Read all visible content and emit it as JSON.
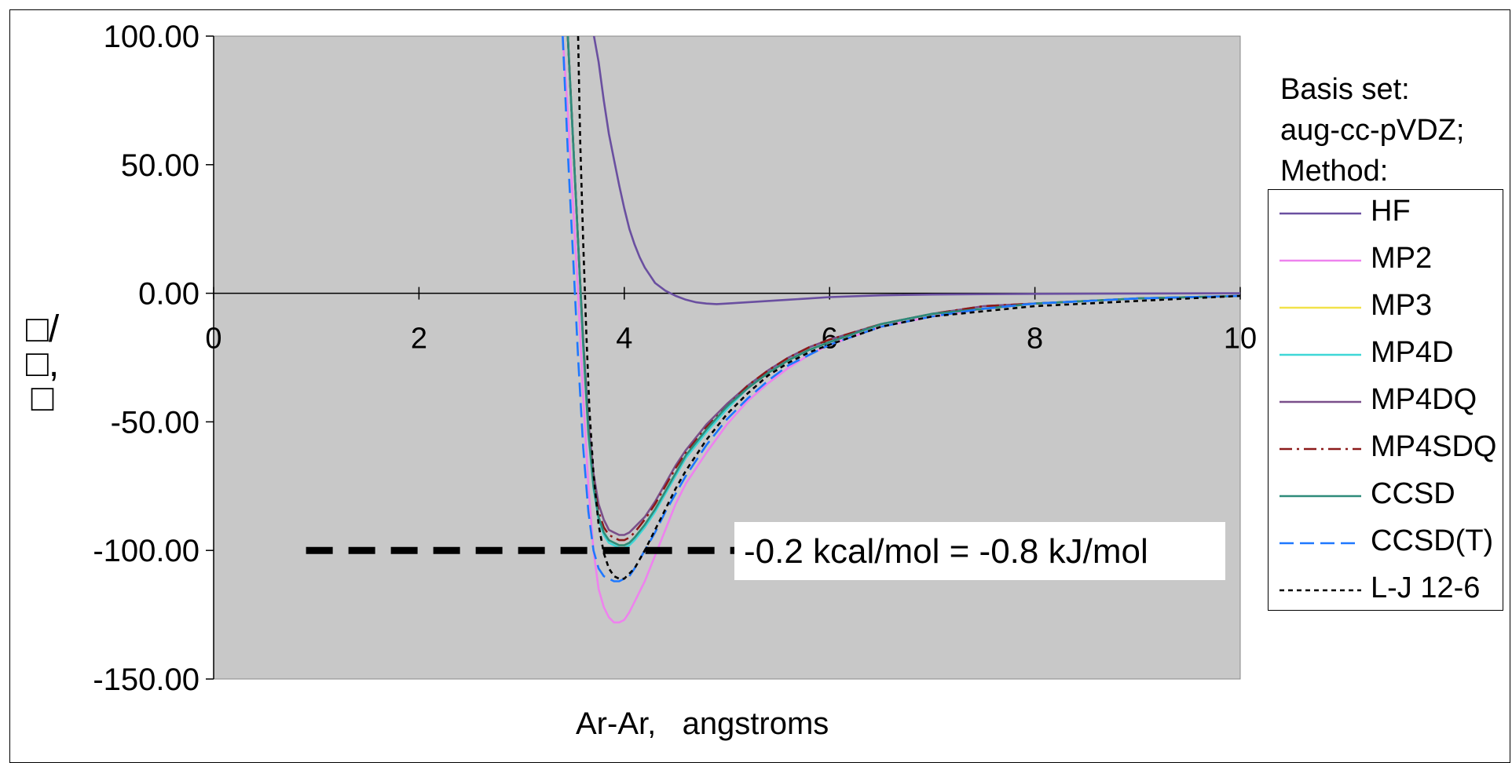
{
  "chart_data": {
    "type": "line",
    "xlabel": "Ar-Ar,   angstroms",
    "ylabel_line1": "□/□,",
    "ylabel_line2": "□",
    "xlim": [
      0,
      10
    ],
    "ylim": [
      -150,
      100
    ],
    "xticks": [
      "0",
      "2",
      "4",
      "6",
      "8",
      "10"
    ],
    "yticks": [
      "100.00",
      "50.00",
      "0.00",
      "-50.00",
      "-100.00",
      "-150.00"
    ],
    "plot_background": "#c8c8c8",
    "grid": false,
    "legend_header": [
      "Basis set:",
      "aug-cc-pVDZ;",
      "Method:"
    ],
    "legend_position": "right",
    "annotation": {
      "text": "-0.2 kcal/mol = -0.8 kJ/mol",
      "y": -100,
      "x_start": 0.9,
      "x_end": 5.1
    },
    "series": [
      {
        "name": "HF",
        "color": "#6a4fa0",
        "dash": "solid",
        "x": [
          3.7,
          3.75,
          3.8,
          3.85,
          3.9,
          3.95,
          4.0,
          4.05,
          4.1,
          4.15,
          4.2,
          4.25,
          4.3,
          4.4,
          4.5,
          4.6,
          4.7,
          4.8,
          4.9,
          5.0,
          5.2,
          5.4,
          5.6,
          5.8,
          6.0,
          6.5,
          7.0,
          8.0,
          9.0,
          10.0
        ],
        "y": [
          101,
          90,
          75,
          62,
          52,
          42,
          33,
          25,
          19,
          14,
          10,
          7,
          4,
          1,
          -1,
          -2.5,
          -3.5,
          -4,
          -4.2,
          -4,
          -3.5,
          -3,
          -2.5,
          -2,
          -1.5,
          -0.8,
          -0.5,
          -0.2,
          -0.1,
          0
        ]
      },
      {
        "name": "MP2",
        "color": "#ee82ee",
        "dash": "solid",
        "x": [
          3.4,
          3.45,
          3.5,
          3.55,
          3.6,
          3.65,
          3.7,
          3.75,
          3.8,
          3.85,
          3.9,
          3.95,
          4.0,
          4.05,
          4.1,
          4.2,
          4.3,
          4.4,
          4.5,
          4.6,
          4.8,
          5.0,
          5.2,
          5.4,
          5.6,
          5.8,
          6.0,
          6.5,
          7.0,
          7.5,
          8.0,
          9.0,
          10.0
        ],
        "y": [
          100,
          70,
          35,
          0,
          -40,
          -75,
          -100,
          -115,
          -122,
          -126,
          -128,
          -128,
          -127,
          -124,
          -120,
          -112,
          -102,
          -92,
          -82,
          -74,
          -62,
          -51,
          -42,
          -35,
          -29,
          -24,
          -20,
          -13,
          -9,
          -6,
          -4,
          -2,
          -1
        ]
      },
      {
        "name": "MP3",
        "color": "#f2e24a",
        "dash": "solid",
        "x": [
          3.45,
          3.5,
          3.55,
          3.6,
          3.65,
          3.7,
          3.75,
          3.8,
          3.85,
          3.9,
          3.95,
          4.0,
          4.05,
          4.1,
          4.2,
          4.3,
          4.4,
          4.5,
          4.6,
          4.8,
          5.0,
          5.2,
          5.4,
          5.6,
          5.8,
          6.0,
          6.5,
          7.0,
          7.5,
          8.0,
          9.0,
          10.0
        ],
        "y": [
          100,
          60,
          20,
          -20,
          -55,
          -75,
          -87,
          -93,
          -96,
          -97,
          -98,
          -98,
          -97,
          -95,
          -90,
          -84,
          -77,
          -70,
          -63,
          -53,
          -44,
          -37,
          -31,
          -26,
          -22,
          -19,
          -12,
          -8,
          -6,
          -4,
          -2,
          -1
        ]
      },
      {
        "name": "MP4D",
        "color": "#3fd7d7",
        "dash": "solid",
        "x": [
          3.45,
          3.5,
          3.55,
          3.6,
          3.65,
          3.7,
          3.75,
          3.8,
          3.85,
          3.9,
          3.95,
          4.0,
          4.05,
          4.1,
          4.2,
          4.3,
          4.4,
          4.5,
          4.6,
          4.8,
          5.0,
          5.2,
          5.4,
          5.6,
          5.8,
          6.0,
          6.5,
          7.0,
          7.5,
          8.0,
          9.0,
          10.0
        ],
        "y": [
          100,
          60,
          20,
          -20,
          -55,
          -76,
          -88,
          -94,
          -97,
          -98,
          -99,
          -99,
          -98,
          -96,
          -91,
          -85,
          -78,
          -71,
          -64,
          -54,
          -45,
          -37,
          -31,
          -26,
          -22,
          -19,
          -12,
          -8,
          -6,
          -4,
          -2,
          -1
        ]
      },
      {
        "name": "MP4DQ",
        "color": "#7a4f8a",
        "dash": "solid",
        "x": [
          3.45,
          3.5,
          3.55,
          3.6,
          3.65,
          3.7,
          3.75,
          3.8,
          3.85,
          3.9,
          3.95,
          4.0,
          4.05,
          4.1,
          4.2,
          4.3,
          4.4,
          4.5,
          4.6,
          4.8,
          5.0,
          5.2,
          5.4,
          5.6,
          5.8,
          6.0,
          6.5,
          7.0,
          7.5,
          8.0,
          9.0,
          10.0
        ],
        "y": [
          100,
          60,
          20,
          -18,
          -50,
          -70,
          -82,
          -88,
          -92,
          -93,
          -94,
          -94,
          -93,
          -91,
          -87,
          -81,
          -74,
          -67,
          -61,
          -51,
          -43,
          -36,
          -30,
          -25,
          -21,
          -18,
          -12,
          -8,
          -5,
          -4,
          -2,
          -1
        ]
      },
      {
        "name": "MP4SDQ",
        "color": "#8b1a1a",
        "dash": "dashdot",
        "x": [
          3.45,
          3.5,
          3.55,
          3.6,
          3.65,
          3.7,
          3.75,
          3.8,
          3.85,
          3.9,
          3.95,
          4.0,
          4.05,
          4.1,
          4.2,
          4.3,
          4.4,
          4.5,
          4.6,
          4.8,
          5.0,
          5.2,
          5.4,
          5.6,
          5.8,
          6.0,
          6.5,
          7.0,
          7.5,
          8.0,
          9.0,
          10.0
        ],
        "y": [
          100,
          60,
          20,
          -19,
          -53,
          -73,
          -85,
          -91,
          -94,
          -95,
          -96,
          -96,
          -95,
          -93,
          -88,
          -82,
          -75,
          -68,
          -62,
          -52,
          -44,
          -36,
          -30,
          -25,
          -21,
          -18,
          -12,
          -8,
          -5,
          -4,
          -2,
          -1
        ]
      },
      {
        "name": "CCSD",
        "color": "#2e8b7a",
        "dash": "solid",
        "x": [
          3.45,
          3.5,
          3.55,
          3.6,
          3.65,
          3.7,
          3.75,
          3.8,
          3.85,
          3.9,
          3.95,
          4.0,
          4.05,
          4.1,
          4.2,
          4.3,
          4.4,
          4.5,
          4.6,
          4.8,
          5.0,
          5.2,
          5.4,
          5.6,
          5.8,
          6.0,
          6.5,
          7.0,
          7.5,
          8.0,
          9.0,
          10.0
        ],
        "y": [
          100,
          60,
          20,
          -20,
          -54,
          -75,
          -87,
          -93,
          -96,
          -97,
          -98,
          -98,
          -97,
          -95,
          -90,
          -84,
          -77,
          -70,
          -63,
          -53,
          -44,
          -37,
          -31,
          -26,
          -22,
          -19,
          -12,
          -8,
          -6,
          -4,
          -2,
          -1
        ]
      },
      {
        "name": "CCSD(T)",
        "color": "#1e78ff",
        "dash": "dashed",
        "x": [
          3.4,
          3.45,
          3.5,
          3.55,
          3.6,
          3.65,
          3.7,
          3.75,
          3.8,
          3.85,
          3.9,
          3.95,
          4.0,
          4.05,
          4.1,
          4.2,
          4.3,
          4.4,
          4.5,
          4.6,
          4.8,
          5.0,
          5.2,
          5.4,
          5.6,
          5.8,
          6.0,
          6.5,
          7.0,
          7.5,
          8.0,
          9.0,
          10.0
        ],
        "y": [
          100,
          55,
          15,
          -25,
          -60,
          -85,
          -100,
          -107,
          -110,
          -111,
          -112,
          -112,
          -111,
          -110,
          -107,
          -100,
          -93,
          -85,
          -78,
          -71,
          -59,
          -49,
          -41,
          -34,
          -28,
          -24,
          -20,
          -13,
          -9,
          -6,
          -4,
          -2,
          -1
        ]
      },
      {
        "name": "L-J 12-6",
        "color": "#000000",
        "dash": "dotted",
        "x": [
          3.55,
          3.57,
          3.6,
          3.63,
          3.66,
          3.7,
          3.75,
          3.8,
          3.85,
          3.9,
          3.95,
          4.0,
          4.1,
          4.2,
          4.3,
          4.4,
          4.5,
          4.6,
          4.8,
          5.0,
          5.2,
          5.4,
          5.6,
          5.8,
          6.0,
          6.5,
          7.0,
          7.5,
          8.0,
          8.5,
          9.0,
          9.5,
          10.0
        ],
        "y": [
          100,
          60,
          20,
          -15,
          -45,
          -70,
          -90,
          -101,
          -107,
          -110,
          -111,
          -111,
          -107,
          -100,
          -92,
          -84,
          -76,
          -69,
          -57,
          -47,
          -39,
          -32,
          -27,
          -23,
          -20,
          -13,
          -9,
          -7,
          -5,
          -4,
          -3,
          -2,
          -1
        ]
      }
    ]
  }
}
